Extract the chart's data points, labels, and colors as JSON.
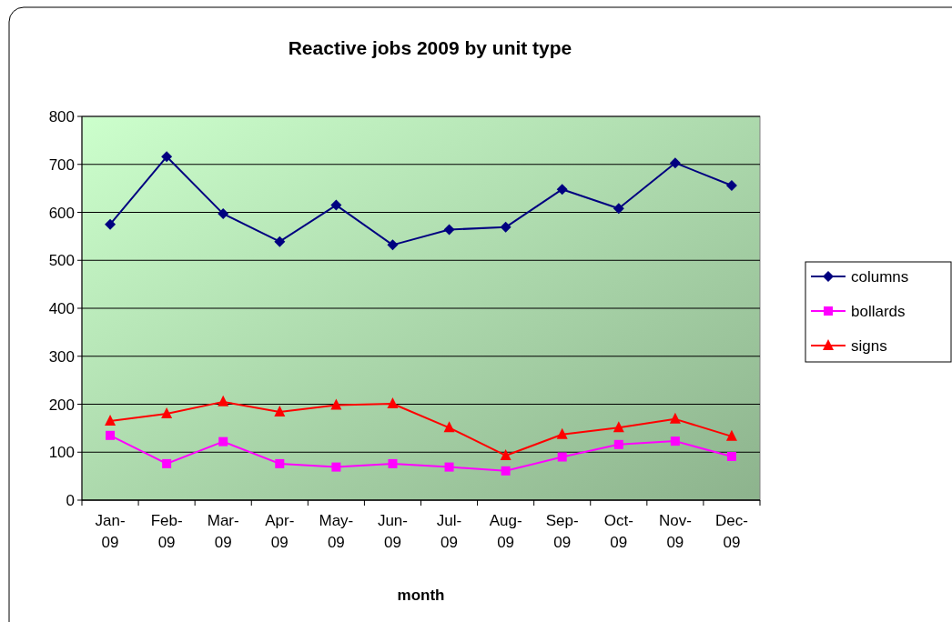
{
  "chart_data": {
    "type": "line",
    "title": "Reactive jobs 2009 by unit type",
    "xlabel": "month",
    "categories": [
      "Jan-\n09",
      "Feb-\n09",
      "Mar-\n09",
      "Apr-\n09",
      "May-\n09",
      "Jun-\n09",
      "Jul-\n09",
      "Aug-\n09",
      "Sep-\n09",
      "Oct-\n09",
      "Nov-\n09",
      "Dec-\n09"
    ],
    "series": [
      {
        "name": "columns",
        "color": "#000080",
        "marker": "diamond",
        "values": [
          575,
          716,
          597,
          539,
          615,
          532,
          564,
          569,
          648,
          608,
          703,
          656
        ]
      },
      {
        "name": "bollards",
        "color": "#ff00ff",
        "marker": "square",
        "values": [
          135,
          76,
          122,
          76,
          69,
          76,
          69,
          61,
          90,
          116,
          123,
          91
        ]
      },
      {
        "name": "signs",
        "color": "#ff0000",
        "marker": "triangle",
        "values": [
          165,
          180,
          205,
          184,
          198,
          201,
          151,
          93,
          137,
          151,
          169,
          133
        ]
      }
    ],
    "ylim": [
      0,
      800
    ],
    "yticks": [
      0,
      100,
      200,
      300,
      400,
      500,
      600,
      700,
      800
    ],
    "grid": "y",
    "legend": "right"
  }
}
